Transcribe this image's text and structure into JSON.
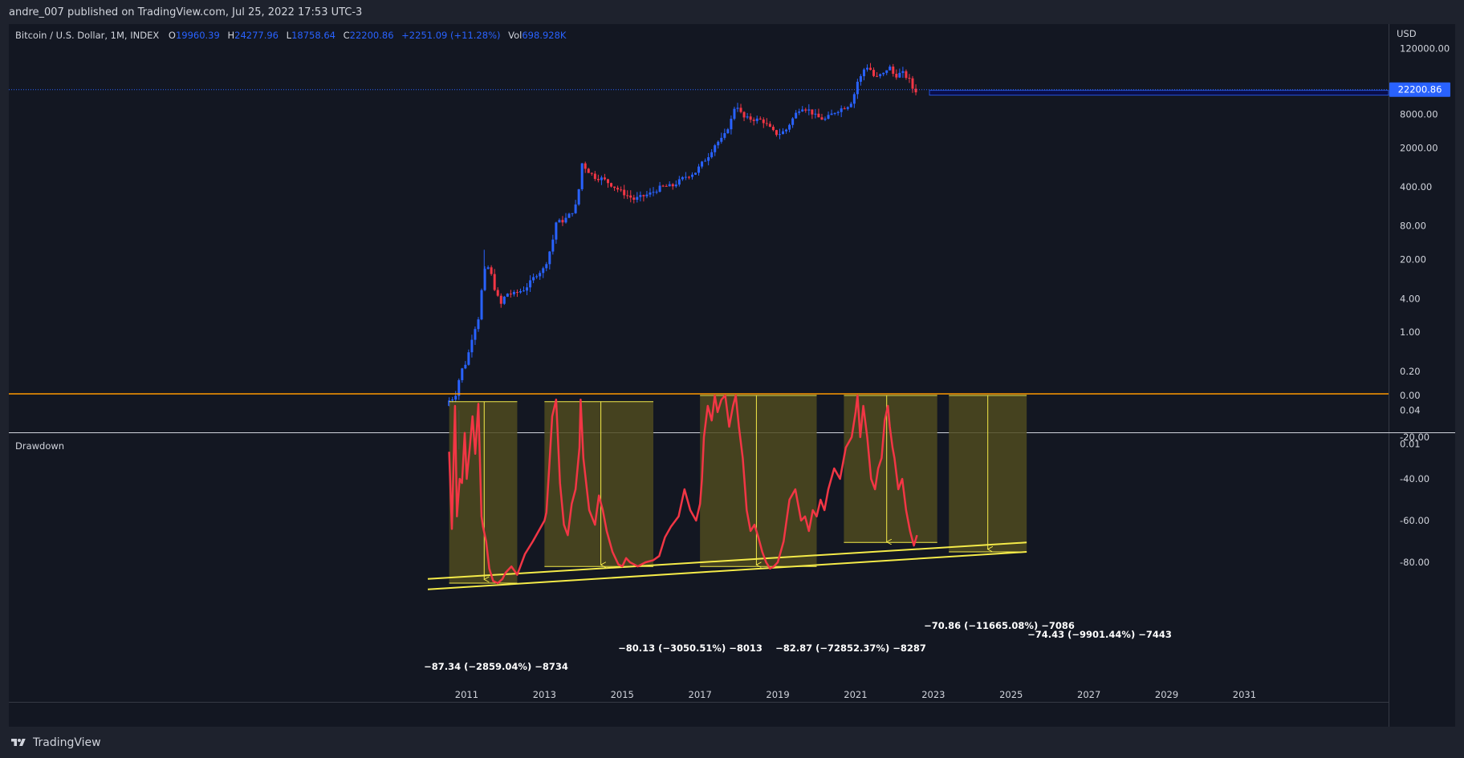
{
  "publish_info": "andre_007 published on TradingView.com, Jul 25, 2022 17:53 UTC-3",
  "footer": {
    "brand": "TradingView"
  },
  "colors": {
    "bg": "#131722",
    "up": "#2962ff",
    "down": "#f23645",
    "drawdown_line": "#f23645",
    "zero_line": "#ff9800",
    "trend": "#f5eb49",
    "box_fill": "#4f4a1e",
    "price_label": "#2962ff"
  },
  "header": {
    "symbol": "Bitcoin / U.S. Dollar, 1M, INDEX",
    "open_label": "O",
    "open": "19960.39",
    "high_label": "H",
    "high": "24277.96",
    "low_label": "L",
    "low": "18758.64",
    "close_label": "C",
    "close": "22200.86",
    "change": "+2251.09 (+11.28%)",
    "vol_label": "Vol",
    "vol": "698.928K"
  },
  "price_axis": {
    "currency": "USD",
    "last_price": "22200.86",
    "ticks": [
      "120000.00",
      "8000.00",
      "2000.00",
      "400.00",
      "80.00",
      "20.00",
      "4.00",
      "1.00",
      "0.20",
      "0.04",
      "0.01"
    ]
  },
  "drawdown_panel": {
    "title": "Drawdown",
    "ticks": [
      "0.00",
      "-20.00",
      "-40.00",
      "-60.00",
      "-80.00"
    ]
  },
  "time_axis": {
    "labels": [
      "2011",
      "2013",
      "2015",
      "2017",
      "2019",
      "2021",
      "2023",
      "2025",
      "2027",
      "2029",
      "2031"
    ]
  },
  "chart_data": [
    {
      "type": "candlestick",
      "title": "Bitcoin / U.S. Dollar, 1M, INDEX",
      "scale": "log",
      "ylabel": "USD",
      "x_range": [
        2010.0,
        2032.0
      ],
      "ylim": [
        0.005,
        160000
      ],
      "last_price": 22200.86,
      "ohlc_last": {
        "open": 19960.39,
        "high": 24277.96,
        "low": 18758.64,
        "close": 22200.86,
        "change": 2251.09,
        "change_pct": 11.28,
        "volume": "698.928K"
      },
      "path_x": [
        2010.55,
        2010.7,
        2010.85,
        2011.0,
        2011.15,
        2011.3,
        2011.42,
        2011.5,
        2011.6,
        2011.75,
        2011.9,
        2012.0,
        2012.2,
        2012.5,
        2012.8,
        2013.0,
        2013.2,
        2013.3,
        2013.5,
        2013.7,
        2013.85,
        2013.95,
        2014.1,
        2014.3,
        2014.5,
        2014.8,
        2015.0,
        2015.3,
        2015.7,
        2016.0,
        2016.3,
        2016.6,
        2016.9,
        2017.0,
        2017.2,
        2017.4,
        2017.6,
        2017.8,
        2017.92,
        2018.0,
        2018.1,
        2018.3,
        2018.6,
        2018.9,
        2019.0,
        2019.2,
        2019.45,
        2019.6,
        2019.8,
        2020.0,
        2020.2,
        2020.5,
        2020.8,
        2020.95,
        2021.0,
        2021.1,
        2021.25,
        2021.35,
        2021.5,
        2021.65,
        2021.75,
        2021.85,
        2022.0,
        2022.2,
        2022.4,
        2022.5,
        2022.6
      ],
      "path_close": [
        0.06,
        0.07,
        0.2,
        0.3,
        0.9,
        1.8,
        9,
        16,
        13,
        5,
        3,
        5,
        4.8,
        6,
        11,
        14,
        40,
        93,
        100,
        140,
        210,
        1100,
        800,
        600,
        560,
        400,
        320,
        240,
        300,
        400,
        420,
        600,
        750,
        970,
        1400,
        2400,
        3000,
        6400,
        13000,
        10000,
        7000,
        6600,
        6300,
        3800,
        3500,
        4100,
        8000,
        11000,
        9500,
        7200,
        6400,
        9200,
        11500,
        15000,
        29000,
        33000,
        58000,
        56000,
        35000,
        41000,
        43000,
        61000,
        38500,
        45000,
        32000,
        20000,
        22200
      ]
    },
    {
      "type": "line",
      "title": "Drawdown",
      "ylim": [
        -100,
        0
      ],
      "x": [
        2010.55,
        2010.62,
        2010.7,
        2010.75,
        2010.82,
        2010.88,
        2010.95,
        2011.0,
        2011.08,
        2011.15,
        2011.22,
        2011.3,
        2011.38,
        2011.42,
        2011.5,
        2011.58,
        2011.68,
        2011.8,
        2011.92,
        2012.0,
        2012.15,
        2012.3,
        2012.5,
        2012.7,
        2012.85,
        2013.0,
        2013.05,
        2013.12,
        2013.2,
        2013.3,
        2013.4,
        2013.5,
        2013.6,
        2013.7,
        2013.8,
        2013.9,
        2013.93,
        2014.0,
        2014.15,
        2014.3,
        2014.4,
        2014.5,
        2014.6,
        2014.75,
        2014.9,
        2015.0,
        2015.1,
        2015.2,
        2015.4,
        2015.6,
        2015.8,
        2015.95,
        2016.1,
        2016.25,
        2016.45,
        2016.6,
        2016.75,
        2016.9,
        2017.0,
        2017.05,
        2017.1,
        2017.2,
        2017.3,
        2017.38,
        2017.45,
        2017.55,
        2017.65,
        2017.75,
        2017.85,
        2017.92,
        2018.0,
        2018.1,
        2018.2,
        2018.3,
        2018.4,
        2018.5,
        2018.6,
        2018.7,
        2018.8,
        2018.9,
        2019.0,
        2019.15,
        2019.3,
        2019.45,
        2019.6,
        2019.7,
        2019.8,
        2019.9,
        2020.0,
        2020.1,
        2020.2,
        2020.3,
        2020.45,
        2020.6,
        2020.75,
        2020.9,
        2021.0,
        2021.05,
        2021.12,
        2021.2,
        2021.3,
        2021.4,
        2021.5,
        2021.58,
        2021.67,
        2021.75,
        2021.83,
        2021.88,
        2021.95,
        2022.0,
        2022.1,
        2022.2,
        2022.3,
        2022.4,
        2022.5,
        2022.58
      ],
      "y": [
        -27,
        -64,
        -5,
        -58,
        -40,
        -42,
        -18,
        -40,
        -25,
        -10,
        -28,
        -4,
        -58,
        -63,
        -70,
        -83,
        -89,
        -90,
        -88,
        -85,
        -82,
        -86,
        -76,
        -70,
        -65,
        -60,
        -56,
        -35,
        -10,
        -2,
        -42,
        -62,
        -67,
        -52,
        -45,
        -25,
        -2,
        -30,
        -55,
        -62,
        -48,
        -55,
        -65,
        -75,
        -81,
        -82,
        -78,
        -80,
        -82,
        -80,
        -79,
        -77,
        -68,
        -63,
        -58,
        -45,
        -55,
        -60,
        -52,
        -40,
        -20,
        -5,
        -12,
        0,
        -8,
        -2,
        0,
        -15,
        -5,
        0,
        -15,
        -30,
        -55,
        -65,
        -62,
        -68,
        -75,
        -80,
        -83,
        -82,
        -80,
        -70,
        -50,
        -45,
        -60,
        -58,
        -65,
        -55,
        -58,
        -50,
        -55,
        -45,
        -35,
        -40,
        -25,
        -20,
        -8,
        0,
        -20,
        -5,
        -20,
        -40,
        -45,
        -35,
        -30,
        -12,
        -5,
        -15,
        -25,
        -30,
        -45,
        -40,
        -55,
        -65,
        -72,
        -67
      ],
      "boxes": [
        {
          "x0": 2010.55,
          "x1": 2012.3,
          "top": -3,
          "bottom": -90,
          "arrow_x": 2011.45,
          "arrow_to": -89,
          "label": "−87.34 (−2859.04%) −8734"
        },
        {
          "x0": 2013.0,
          "x1": 2015.8,
          "top": -3,
          "bottom": -82,
          "arrow_x": 2014.45,
          "arrow_to": -82,
          "label": "−80.13 (−3050.51%) −8013"
        },
        {
          "x0": 2017.0,
          "x1": 2020.0,
          "top": 0,
          "bottom": -82,
          "arrow_x": 2018.45,
          "arrow_to": -82,
          "label": "−82.87 (−72852.37%) −8287"
        },
        {
          "x0": 2020.7,
          "x1": 2023.1,
          "top": 0,
          "bottom": -70.5,
          "arrow_x": 2021.8,
          "arrow_to": -71,
          "label": "−70.86 (−11665.08%) −7086"
        },
        {
          "x0": 2023.4,
          "x1": 2025.4,
          "top": 0,
          "bottom": -75,
          "arrow_x": 2024.4,
          "arrow_to": -74.5,
          "label": "−74.43 (−9901.44%) −7443"
        }
      ],
      "trendlines": [
        {
          "x0": 2010.0,
          "y0": -88,
          "x1": 2025.4,
          "y1": -70.5
        },
        {
          "x0": 2010.0,
          "y0": -93,
          "x1": 2025.4,
          "y1": -75
        }
      ]
    }
  ]
}
